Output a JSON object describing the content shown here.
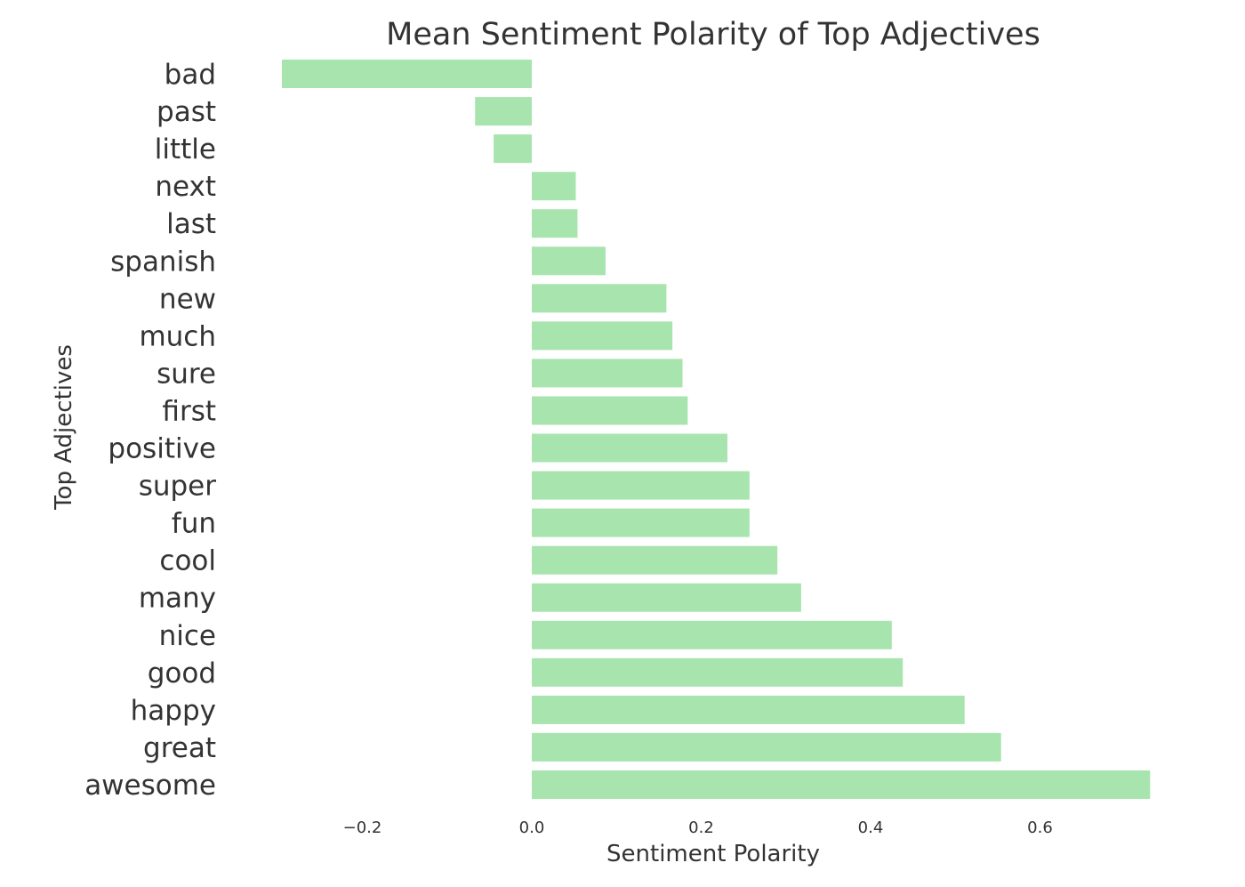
{
  "chart_data": {
    "type": "bar",
    "orientation": "horizontal",
    "title": "Mean Sentiment Polarity of Top Adjectives",
    "xlabel": "Sentiment Polarity",
    "ylabel": "Top Adjectives",
    "categories": [
      "bad",
      "past",
      "little",
      "next",
      "last",
      "spanish",
      "new",
      "much",
      "sure",
      "first",
      "positive",
      "super",
      "fun",
      "cool",
      "many",
      "nice",
      "good",
      "happy",
      "great",
      "awesome"
    ],
    "values": [
      -0.295,
      -0.067,
      -0.045,
      0.052,
      0.054,
      0.087,
      0.159,
      0.166,
      0.178,
      0.184,
      0.231,
      0.257,
      0.257,
      0.29,
      0.318,
      0.425,
      0.438,
      0.511,
      0.554,
      0.73
    ],
    "xticks": [
      -0.2,
      0.0,
      0.2,
      0.4,
      0.6
    ],
    "xtick_labels": [
      "−0.2",
      "0.0",
      "0.2",
      "0.4",
      "0.6"
    ],
    "xlim": [
      -0.3,
      0.73
    ],
    "grid": false,
    "legend": "none",
    "bar_color": "#a8e4ae",
    "text_color": "#333333"
  }
}
